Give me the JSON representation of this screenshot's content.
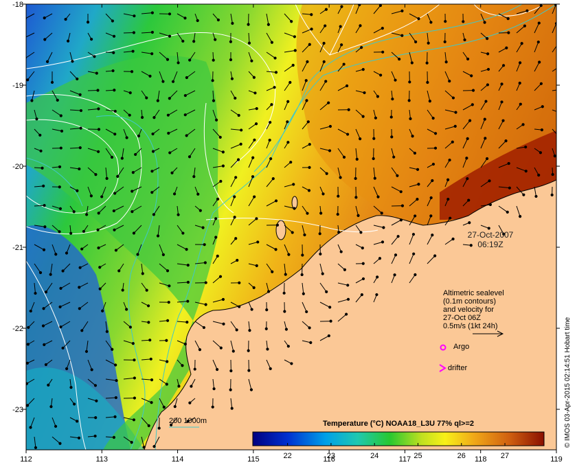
{
  "map": {
    "lon_ticks": [
      "112",
      "113",
      "114",
      "115",
      "116",
      "117",
      "118",
      "119"
    ],
    "lat_ticks": [
      "-18",
      "-19",
      "-20",
      "-21",
      "-22",
      "-23"
    ],
    "date": "27-Oct-2007",
    "time": "06:19Z",
    "colorbar": {
      "title": "Temperature (°C) NOAA18_L3U 77% ql>=2",
      "ticks": [
        "22",
        "23",
        "24",
        "25",
        "26",
        "27"
      ],
      "range": [
        21.2,
        27.9
      ]
    },
    "legend": {
      "lines": [
        "Altimetric sealevel",
        "(0.1m contours)",
        "and velocity for",
        "27-Oct 06Z",
        "0.5m/s (1kt 24h)"
      ],
      "argo": "Argo",
      "drifter": "drifter",
      "bathy": "200  1000m"
    },
    "credit": "© IMOS 03-Apr-2015 02:14:51 Hobart time",
    "colors": {
      "land": "#fbc896",
      "cool": "#1e5ad2",
      "mid": "#2cc83c",
      "warm": "#e89010",
      "hot": "#a01e00",
      "contour": "#ffffff",
      "bathy": "#40c8c8",
      "marker": "#ff00ff"
    }
  }
}
